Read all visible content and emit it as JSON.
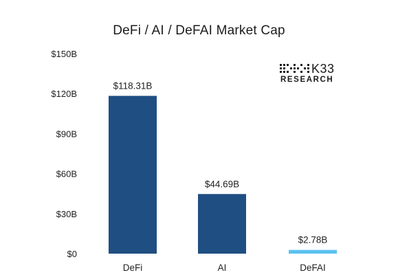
{
  "chart_data": {
    "type": "bar",
    "title": "DeFi / AI / DeFAI Market Cap",
    "categories": [
      "DeFi",
      "AI",
      "DeFAI"
    ],
    "values": [
      118.31,
      44.69,
      2.78
    ],
    "data_labels": [
      "$118.31B",
      "$44.69B",
      "$2.78B"
    ],
    "bar_colors": [
      "#1f4e82",
      "#1f4e82",
      "#5bc2f0"
    ],
    "ylim": [
      0,
      150
    ],
    "yticks": [
      0,
      30,
      60,
      90,
      120,
      150
    ],
    "ytick_labels": [
      "$0",
      "$30B",
      "$60B",
      "$90B",
      "$120B",
      "$150B"
    ],
    "xlabel": "",
    "ylabel": "",
    "grid": false,
    "legend": "none"
  },
  "logo": {
    "brand": "K33",
    "sub": "RESEARCH",
    "mark_icon": "k33-dot-grid-icon"
  }
}
